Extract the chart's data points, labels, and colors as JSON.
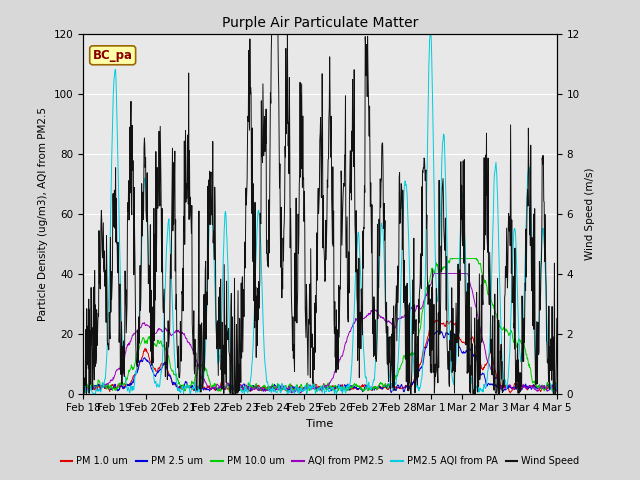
{
  "title": "Purple Air Particulate Matter",
  "xlabel": "Time",
  "ylabel_left": "Particle Density (ug/m3), AQI from PM2.5",
  "ylabel_right": "Wind Speed (m/s)",
  "ylim_left": [
    0,
    120
  ],
  "ylim_right": [
    0,
    12
  ],
  "annotation": "BC_pa",
  "background_color": "#d8d8d8",
  "plot_bg_color": "#e8e8e8",
  "legend_entries": [
    "PM 1.0 um",
    "PM 2.5 um",
    "PM 10.0 um",
    "AQI from PM2.5",
    "PM2.5 AQI from PA",
    "Wind Speed"
  ],
  "legend_colors": [
    "#dd0000",
    "#0000dd",
    "#00cc00",
    "#9900bb",
    "#00ccdd",
    "#111111"
  ],
  "xtick_labels": [
    "Feb 18",
    "Feb 19",
    "Feb 20",
    "Feb 21",
    "Feb 22",
    "Feb 23",
    "Feb 24",
    "Feb 25",
    "Feb 26",
    "Feb 27",
    "Feb 28",
    "Mar 1",
    "Mar 2",
    "Mar 3",
    "Mar 4",
    "Mar 5"
  ],
  "n_points": 1200
}
